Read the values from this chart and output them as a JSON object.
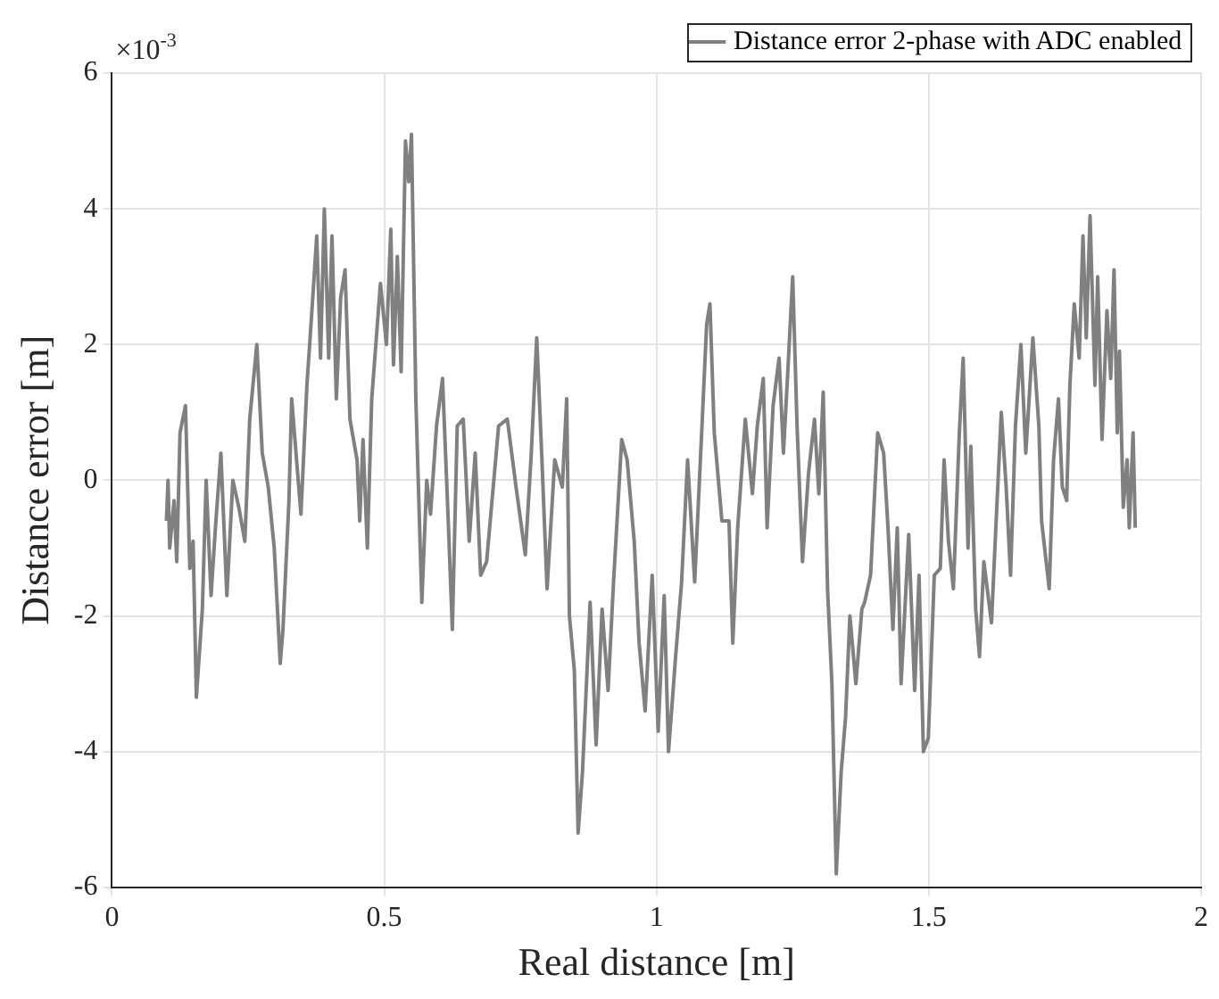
{
  "chart_data": {
    "type": "line",
    "xlabel": "Real distance [m]",
    "ylabel": "Distance error [m]",
    "annotations": [
      "×10$^{-3}$"
    ],
    "xlim": [
      0,
      2
    ],
    "xticks": [
      0,
      0.5,
      1,
      1.5,
      2
    ],
    "ylim": [
      -6,
      6
    ],
    "yticks": [
      -6,
      -4,
      -2,
      0,
      2,
      4,
      6
    ],
    "grid": true,
    "legend": "top right",
    "marker": "none",
    "line_style": "solid",
    "x": [
      0.1,
      0.103,
      0.106,
      0.114,
      0.119,
      0.125,
      0.135,
      0.143,
      0.149,
      0.155,
      0.166,
      0.173,
      0.182,
      0.19,
      0.2,
      0.211,
      0.222,
      0.233,
      0.244,
      0.253,
      0.266,
      0.276,
      0.287,
      0.298,
      0.309,
      0.314,
      0.325,
      0.33,
      0.347,
      0.358,
      0.368,
      0.376,
      0.383,
      0.39,
      0.398,
      0.404,
      0.412,
      0.42,
      0.428,
      0.437,
      0.45,
      0.455,
      0.461,
      0.469,
      0.477,
      0.493,
      0.504,
      0.512,
      0.517,
      0.524,
      0.531,
      0.539,
      0.545,
      0.55,
      0.558,
      0.569,
      0.578,
      0.585,
      0.596,
      0.607,
      0.618,
      0.625,
      0.634,
      0.645,
      0.656,
      0.667,
      0.677,
      0.688,
      0.71,
      0.726,
      0.742,
      0.759,
      0.77,
      0.78,
      0.788,
      0.799,
      0.813,
      0.827,
      0.835,
      0.84,
      0.849,
      0.856,
      0.864,
      0.878,
      0.889,
      0.9,
      0.911,
      0.921,
      0.936,
      0.946,
      0.959,
      0.968,
      0.979,
      0.992,
      1.003,
      1.014,
      1.022,
      1.035,
      1.046,
      1.057,
      1.07,
      1.084,
      1.092,
      1.098,
      1.106,
      1.12,
      1.133,
      1.14,
      1.149,
      1.163,
      1.176,
      1.185,
      1.196,
      1.203,
      1.214,
      1.225,
      1.233,
      1.241,
      1.25,
      1.258,
      1.268,
      1.279,
      1.29,
      1.298,
      1.306,
      1.314,
      1.322,
      1.33,
      1.339,
      1.347,
      1.355,
      1.366,
      1.377,
      1.382,
      1.393,
      1.406,
      1.417,
      1.425,
      1.434,
      1.442,
      1.449,
      1.463,
      1.474,
      1.482,
      1.49,
      1.499,
      1.51,
      1.521,
      1.528,
      1.536,
      1.545,
      1.556,
      1.563,
      1.572,
      1.577,
      1.586,
      1.593,
      1.601,
      1.615,
      1.623,
      1.633,
      1.642,
      1.65,
      1.659,
      1.669,
      1.678,
      1.691,
      1.702,
      1.707,
      1.721,
      1.729,
      1.738,
      1.745,
      1.753,
      1.759,
      1.767,
      1.776,
      1.783,
      1.789,
      1.796,
      1.805,
      1.81,
      1.818,
      1.827,
      1.834,
      1.84,
      1.846,
      1.85,
      1.857,
      1.864,
      1.868,
      1.875,
      1.879
    ],
    "series": [
      {
        "name": "Distance error 2-phase with ADC enabled",
        "color": "#808080",
        "values": [
          -0.6,
          0.0,
          -1.0,
          -0.3,
          -1.2,
          0.7,
          1.1,
          -1.3,
          -0.9,
          -3.2,
          -1.9,
          0.0,
          -1.7,
          -0.7,
          0.4,
          -1.7,
          0.0,
          -0.4,
          -0.9,
          0.9,
          2.0,
          0.4,
          -0.1,
          -1.0,
          -2.7,
          -2.2,
          -0.3,
          1.2,
          -0.5,
          1.4,
          2.6,
          3.6,
          1.8,
          4.0,
          1.8,
          3.6,
          1.2,
          2.7,
          3.1,
          0.9,
          0.3,
          -0.6,
          0.6,
          -1.0,
          1.2,
          2.9,
          2.0,
          3.7,
          1.7,
          3.3,
          1.6,
          5.0,
          4.4,
          5.1,
          1.2,
          -1.8,
          0.0,
          -0.5,
          0.8,
          1.5,
          -0.7,
          -2.2,
          0.8,
          0.9,
          -0.9,
          0.4,
          -1.4,
          -1.2,
          0.8,
          0.9,
          -0.1,
          -1.1,
          0.4,
          2.1,
          0.6,
          -1.6,
          0.3,
          -0.1,
          1.2,
          -2.0,
          -2.8,
          -5.2,
          -4.3,
          -1.8,
          -3.9,
          -1.9,
          -3.1,
          -1.5,
          0.6,
          0.3,
          -0.9,
          -2.4,
          -3.4,
          -1.4,
          -3.7,
          -1.7,
          -4.0,
          -2.6,
          -1.5,
          0.3,
          -1.5,
          0.9,
          2.3,
          2.6,
          0.7,
          -0.6,
          -0.6,
          -2.4,
          -0.7,
          0.9,
          -0.2,
          0.8,
          1.5,
          -0.7,
          1.1,
          1.8,
          0.4,
          1.6,
          3.0,
          0.8,
          -1.2,
          0.1,
          0.9,
          -0.2,
          1.3,
          -1.6,
          -3.0,
          -5.8,
          -4.3,
          -3.5,
          -2.0,
          -3.0,
          -1.9,
          -1.8,
          -1.4,
          0.7,
          0.4,
          -0.7,
          -2.2,
          -0.7,
          -3.0,
          -0.8,
          -3.1,
          -1.4,
          -4.0,
          -3.8,
          -1.4,
          -1.3,
          0.3,
          -0.9,
          -1.6,
          0.7,
          1.8,
          -1.0,
          0.5,
          -1.9,
          -2.6,
          -1.2,
          -2.1,
          -0.7,
          1.0,
          -0.1,
          -1.4,
          0.8,
          2.0,
          0.4,
          2.1,
          0.8,
          -0.6,
          -1.6,
          0.3,
          1.2,
          -0.1,
          -0.3,
          1.4,
          2.6,
          1.8,
          3.6,
          2.1,
          3.9,
          1.4,
          3.0,
          0.6,
          2.5,
          1.5,
          3.1,
          0.7,
          1.9,
          -0.4,
          0.3,
          -0.7,
          0.7,
          -0.7
        ]
      }
    ]
  }
}
